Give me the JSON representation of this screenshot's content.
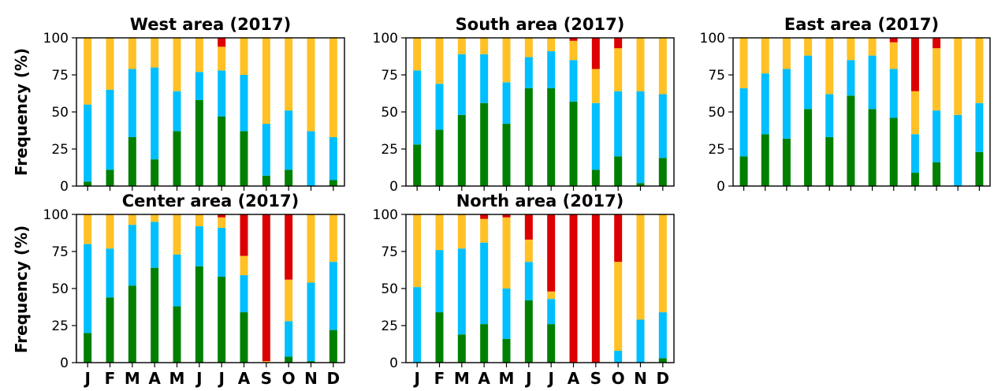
{
  "ylabel": "Frequency (%)",
  "chart_data": [
    {
      "type": "bar",
      "stacked": true,
      "title": "West area (2017)",
      "categories": [
        "J",
        "F",
        "M",
        "A",
        "M",
        "J",
        "J",
        "A",
        "S",
        "O",
        "N",
        "D"
      ],
      "ylim": [
        0,
        100
      ],
      "yticks": [
        "0",
        "25",
        "50",
        "75",
        "100"
      ],
      "grid": false,
      "colors": [
        "#008000",
        "#00bfff",
        "#ffc125",
        "#dd0000"
      ],
      "series": [
        {
          "values": [
            3,
            11,
            33,
            18,
            37,
            58,
            47,
            37,
            7,
            11,
            0,
            4
          ]
        },
        {
          "values": [
            52,
            54,
            46,
            62,
            27,
            19,
            31,
            38,
            35,
            40,
            37,
            29
          ]
        },
        {
          "values": [
            45,
            35,
            21,
            20,
            36,
            23,
            16,
            25,
            58,
            49,
            63,
            67
          ]
        },
        {
          "values": [
            0,
            0,
            0,
            0,
            0,
            0,
            6,
            0,
            0,
            0,
            0,
            0
          ]
        }
      ]
    },
    {
      "type": "bar",
      "stacked": true,
      "title": "South area (2017)",
      "categories": [
        "J",
        "F",
        "M",
        "A",
        "M",
        "J",
        "J",
        "A",
        "S",
        "O",
        "N",
        "D"
      ],
      "ylim": [
        0,
        100
      ],
      "yticks": [
        "0",
        "25",
        "50",
        "75",
        "100"
      ],
      "grid": false,
      "colors": [
        "#008000",
        "#00bfff",
        "#ffc125",
        "#dd0000"
      ],
      "series": [
        {
          "values": [
            28,
            38,
            48,
            56,
            42,
            66,
            66,
            57,
            11,
            20,
            2,
            19
          ]
        },
        {
          "values": [
            50,
            31,
            41,
            33,
            28,
            21,
            25,
            28,
            45,
            44,
            62,
            43
          ]
        },
        {
          "values": [
            22,
            31,
            11,
            11,
            30,
            13,
            9,
            13,
            23,
            29,
            36,
            38
          ]
        },
        {
          "values": [
            0,
            0,
            0,
            0,
            0,
            0,
            0,
            2,
            21,
            7,
            0,
            0
          ]
        }
      ]
    },
    {
      "type": "bar",
      "stacked": true,
      "title": "East area (2017)",
      "categories": [
        "J",
        "F",
        "M",
        "A",
        "M",
        "J",
        "J",
        "A",
        "S",
        "O",
        "N",
        "D"
      ],
      "ylim": [
        0,
        100
      ],
      "yticks": [
        "0",
        "25",
        "50",
        "75",
        "100"
      ],
      "grid": false,
      "colors": [
        "#008000",
        "#00bfff",
        "#ffc125",
        "#dd0000"
      ],
      "series": [
        {
          "values": [
            20,
            35,
            32,
            52,
            33,
            61,
            52,
            46,
            9,
            16,
            0,
            23
          ]
        },
        {
          "values": [
            46,
            41,
            47,
            36,
            29,
            24,
            36,
            33,
            26,
            35,
            48,
            33
          ]
        },
        {
          "values": [
            34,
            24,
            21,
            12,
            38,
            15,
            12,
            18,
            29,
            42,
            52,
            44
          ]
        },
        {
          "values": [
            0,
            0,
            0,
            0,
            0,
            0,
            0,
            3,
            36,
            7,
            0,
            0
          ]
        }
      ]
    },
    {
      "type": "bar",
      "stacked": true,
      "title": "Center area (2017)",
      "categories": [
        "J",
        "F",
        "M",
        "A",
        "M",
        "J",
        "J",
        "A",
        "S",
        "O",
        "N",
        "D"
      ],
      "ylim": [
        0,
        100
      ],
      "yticks": [
        "0",
        "25",
        "50",
        "75",
        "100"
      ],
      "grid": false,
      "colors": [
        "#008000",
        "#00bfff",
        "#ffc125",
        "#dd0000"
      ],
      "series": [
        {
          "values": [
            20,
            44,
            52,
            64,
            38,
            65,
            58,
            34,
            0,
            4,
            1,
            22
          ]
        },
        {
          "values": [
            60,
            33,
            41,
            31,
            35,
            27,
            33,
            25,
            0,
            24,
            53,
            46
          ]
        },
        {
          "values": [
            20,
            23,
            7,
            5,
            27,
            8,
            7,
            13,
            1,
            28,
            46,
            32
          ]
        },
        {
          "values": [
            0,
            0,
            0,
            0,
            0,
            0,
            2,
            28,
            99,
            44,
            0,
            0
          ]
        }
      ]
    },
    {
      "type": "bar",
      "stacked": true,
      "title": "North area (2017)",
      "categories": [
        "J",
        "F",
        "M",
        "A",
        "M",
        "J",
        "J",
        "A",
        "S",
        "O",
        "N",
        "D"
      ],
      "ylim": [
        0,
        100
      ],
      "yticks": [
        "0",
        "25",
        "50",
        "75",
        "100"
      ],
      "grid": false,
      "colors": [
        "#008000",
        "#00bfff",
        "#ffc125",
        "#dd0000"
      ],
      "series": [
        {
          "values": [
            0,
            34,
            19,
            26,
            16,
            42,
            26,
            0,
            0,
            0,
            0,
            3
          ]
        },
        {
          "values": [
            51,
            42,
            58,
            55,
            34,
            26,
            17,
            0,
            0,
            8,
            29,
            31
          ]
        },
        {
          "values": [
            49,
            24,
            23,
            16,
            48,
            15,
            5,
            0,
            0,
            60,
            71,
            66
          ]
        },
        {
          "values": [
            0,
            0,
            0,
            3,
            2,
            17,
            52,
            100,
            100,
            32,
            0,
            0
          ]
        }
      ]
    }
  ]
}
